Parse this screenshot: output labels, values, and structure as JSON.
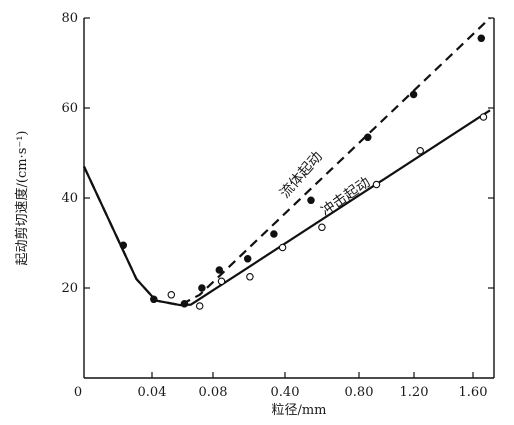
{
  "chart_data": {
    "type": "scatter",
    "xlabel": "粒径/mm",
    "ylabel": "起动剪切速度/(cm·s⁻¹)",
    "x_tick_labels": [
      "0",
      "0.04",
      "0.08",
      "0.40",
      "0.80",
      "1.20",
      "1.60"
    ],
    "x_scale": "piecewise: 0–0.08 mm compressed segment, 0.08–1.60 mm linear (ticks not to a single scale)",
    "y_ticks": [
      20,
      40,
      60,
      80
    ],
    "ylim": [
      0,
      80
    ],
    "grid": false,
    "legend": "none (curves labelled directly)",
    "series": [
      {
        "name": "流体起动",
        "line_style": "dashed",
        "marker": "filled circle",
        "color": "#111111",
        "points": [
          {
            "x_pos": 0.9,
            "y": 29.5
          },
          {
            "x_pos": 1.6,
            "y": 17.5
          },
          {
            "x_pos": 2.3,
            "y": 16.5
          },
          {
            "x_pos": 2.7,
            "y": 20.0
          },
          {
            "x_pos": 3.1,
            "y": 24.0
          },
          {
            "x_pos": 3.75,
            "y": 26.5
          },
          {
            "x_pos": 4.35,
            "y": 32.0
          },
          {
            "x_pos": 5.2,
            "y": 39.5
          },
          {
            "x_pos": 6.5,
            "y": 53.5
          },
          {
            "x_pos": 7.55,
            "y": 63.0
          },
          {
            "x_pos": 9.1,
            "y": 75.5
          }
        ],
        "curve": [
          {
            "x_pos": 0.0,
            "y": 47.0
          },
          {
            "x_pos": 1.2,
            "y": 22.0
          },
          {
            "x_pos": 1.65,
            "y": 17.2
          },
          {
            "x_pos": 2.2,
            "y": 16.2
          },
          {
            "x_pos": 2.65,
            "y": 18.5
          },
          {
            "x_pos": 9.3,
            "y": 80.0
          }
        ]
      },
      {
        "name": "冲击起动",
        "line_style": "solid",
        "marker": "open circle",
        "color": "#111111",
        "points": [
          {
            "x_pos": 2.0,
            "y": 18.5
          },
          {
            "x_pos": 2.65,
            "y": 16.0
          },
          {
            "x_pos": 3.15,
            "y": 21.5
          },
          {
            "x_pos": 3.8,
            "y": 22.5
          },
          {
            "x_pos": 4.55,
            "y": 29.0
          },
          {
            "x_pos": 5.45,
            "y": 33.5
          },
          {
            "x_pos": 6.7,
            "y": 43.0
          },
          {
            "x_pos": 7.7,
            "y": 50.5
          },
          {
            "x_pos": 9.15,
            "y": 58.0
          }
        ],
        "curve": [
          {
            "x_pos": 0.0,
            "y": 47.0
          },
          {
            "x_pos": 1.2,
            "y": 22.0
          },
          {
            "x_pos": 1.65,
            "y": 17.2
          },
          {
            "x_pos": 2.2,
            "y": 16.2
          },
          {
            "x_pos": 2.45,
            "y": 16.3
          },
          {
            "x_pos": 9.3,
            "y": 59.5
          }
        ]
      }
    ],
    "annotations": [
      {
        "text": "流体起动",
        "series": "流体起动",
        "x_pos": 5.05,
        "y": 44.5
      },
      {
        "text": "冲击起动",
        "series": "冲击起动",
        "x_pos": 6.05,
        "y": 39.5
      }
    ]
  }
}
